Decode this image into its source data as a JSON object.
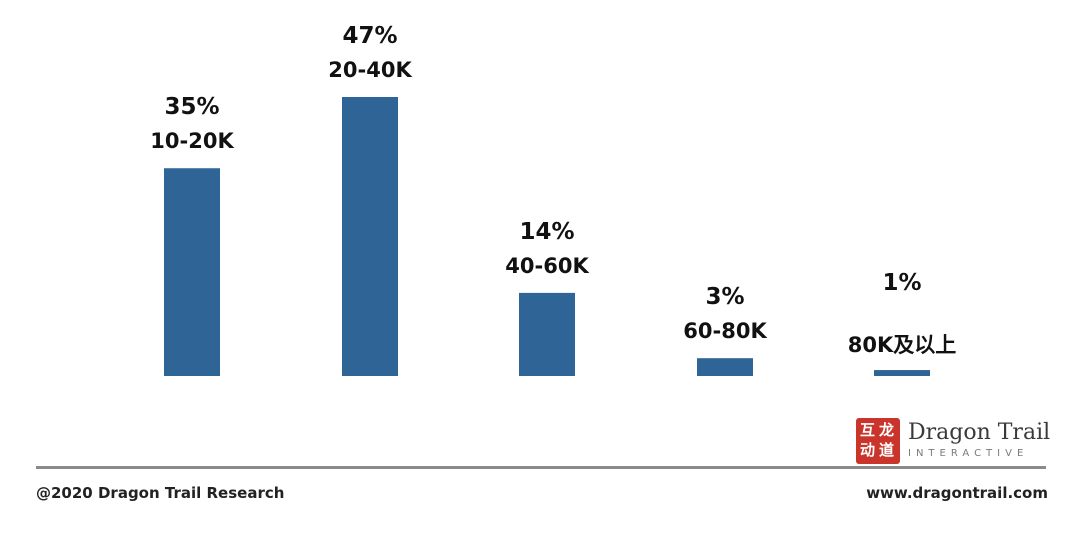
{
  "chart_data": {
    "type": "bar",
    "categories": [
      "10-20K",
      "20-40K",
      "40-60K",
      "60-80K",
      "80K及以上"
    ],
    "values": [
      35,
      47,
      14,
      3,
      1
    ],
    "value_labels": [
      "35%",
      "47%",
      "14%",
      "3%",
      "1%"
    ],
    "unit": "%",
    "ylim": [
      0,
      47
    ],
    "grid": false,
    "legend": "none",
    "bar_color": "#2e6596"
  },
  "brand": {
    "name": "Dragon Trail",
    "tagline": "INTERACTIVE",
    "mark_color": "#c9342b",
    "mark_icon": "dragon-trail-seal-icon"
  },
  "footer": {
    "copyright": "@2020 Dragon Trail Research",
    "website": "www.dragontrail.com"
  }
}
